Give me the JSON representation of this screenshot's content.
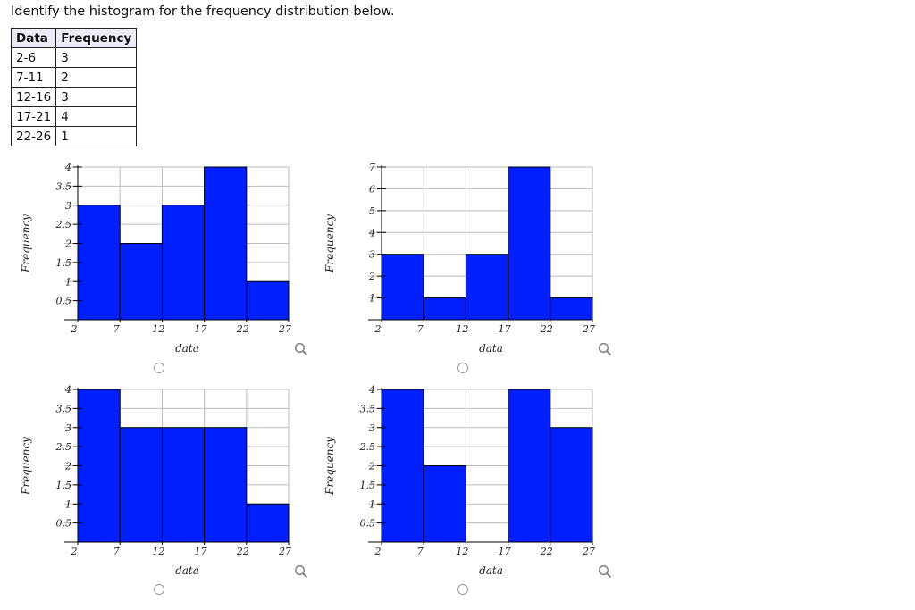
{
  "question": "Identify the histogram for the frequency distribution below.",
  "table": {
    "headers": [
      "Data",
      "Frequency"
    ],
    "rows": [
      [
        "2-6",
        "3"
      ],
      [
        "7-11",
        "2"
      ],
      [
        "12-16",
        "3"
      ],
      [
        "17-21",
        "4"
      ],
      [
        "22-26",
        "1"
      ]
    ]
  },
  "colors": {
    "bar": "#0020ff",
    "bar_stroke": "#000000",
    "grid": "#bbbbbb"
  },
  "icons": {
    "zoom": "magnifier-icon",
    "radio": "radio-circle"
  },
  "chart_data": [
    {
      "type": "bar",
      "categories": [
        "2-7",
        "7-12",
        "12-17",
        "17-22",
        "22-27"
      ],
      "bin_edges": [
        2,
        7,
        12,
        17,
        22,
        27
      ],
      "values": [
        3,
        2,
        3,
        4,
        1
      ],
      "xlabel": "data",
      "ylabel": "Frequency",
      "ylim": [
        0,
        4
      ],
      "yticks": [
        0.5,
        1,
        1.5,
        2,
        2.5,
        3,
        3.5,
        4
      ],
      "ytick_labels": [
        "0.5",
        "1",
        "1.5",
        "2",
        "2.5",
        "3",
        "3.5",
        "4"
      ],
      "grid": true
    },
    {
      "type": "bar",
      "categories": [
        "2-7",
        "7-12",
        "12-17",
        "17-22",
        "22-27"
      ],
      "bin_edges": [
        2,
        7,
        12,
        17,
        22,
        27
      ],
      "values": [
        3,
        1,
        3,
        7,
        1
      ],
      "xlabel": "data",
      "ylabel": "Frequency",
      "ylim": [
        0,
        7
      ],
      "yticks": [
        1,
        2,
        3,
        4,
        5,
        6,
        7
      ],
      "ytick_labels": [
        "1",
        "2",
        "3",
        "4",
        "5",
        "6",
        "7"
      ],
      "grid": true
    },
    {
      "type": "bar",
      "categories": [
        "2-7",
        "7-12",
        "12-17",
        "17-22",
        "22-27"
      ],
      "bin_edges": [
        2,
        7,
        12,
        17,
        22,
        27
      ],
      "values": [
        4,
        3,
        3,
        3,
        1
      ],
      "xlabel": "data",
      "ylabel": "Frequency",
      "ylim": [
        0,
        4
      ],
      "yticks": [
        0.5,
        1,
        1.5,
        2,
        2.5,
        3,
        3.5,
        4
      ],
      "ytick_labels": [
        "0.5",
        "1",
        "1.5",
        "2",
        "2.5",
        "3",
        "3.5",
        "4"
      ],
      "grid": true
    },
    {
      "type": "bar",
      "categories": [
        "2-7",
        "7-12",
        "12-17",
        "17-22",
        "22-27"
      ],
      "bin_edges": [
        2,
        7,
        12,
        17,
        22,
        27
      ],
      "values": [
        4,
        2,
        0,
        4,
        3
      ],
      "xlabel": "data",
      "ylabel": "Frequency",
      "ylim": [
        0,
        4
      ],
      "yticks": [
        0.5,
        1,
        1.5,
        2,
        2.5,
        3,
        3.5,
        4
      ],
      "ytick_labels": [
        "0.5",
        "1",
        "1.5",
        "2",
        "2.5",
        "3",
        "3.5",
        "4"
      ],
      "grid": true
    }
  ]
}
